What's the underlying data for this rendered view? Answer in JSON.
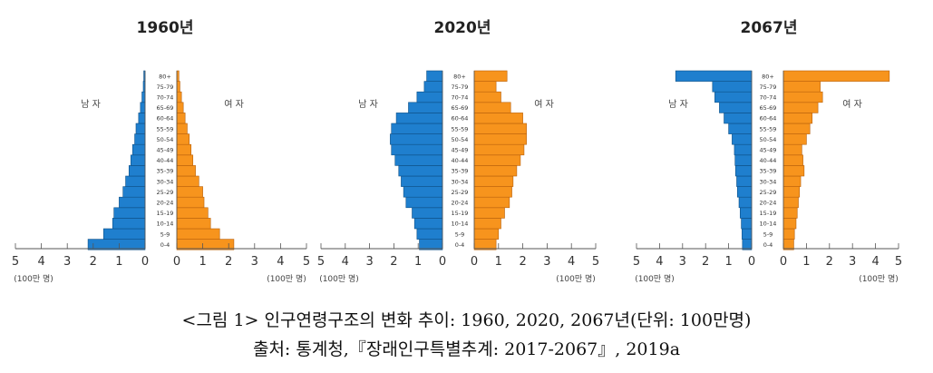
{
  "chart_data": [
    {
      "type": "bar",
      "title": "1960년",
      "age_groups": [
        "0-4",
        "5-9",
        "10-14",
        "15-19",
        "20-24",
        "25-29",
        "30-34",
        "35-39",
        "40-44",
        "45-49",
        "50-54",
        "55-59",
        "60-64",
        "65-69",
        "70-74",
        "75-79",
        "80+"
      ],
      "series": [
        {
          "name": "남 자",
          "values": [
            2.2,
            1.6,
            1.25,
            1.2,
            1.0,
            0.85,
            0.75,
            0.62,
            0.55,
            0.48,
            0.4,
            0.35,
            0.25,
            0.18,
            0.12,
            0.07,
            0.05
          ],
          "color": "#1f7fce"
        },
        {
          "name": "여 자",
          "values": [
            2.2,
            1.65,
            1.3,
            1.2,
            1.05,
            1.0,
            0.85,
            0.72,
            0.62,
            0.55,
            0.48,
            0.4,
            0.32,
            0.25,
            0.18,
            0.12,
            0.08
          ],
          "color": "#f7941d"
        }
      ],
      "xticks": [
        "5",
        "4",
        "3",
        "2",
        "1",
        "0",
        "0",
        "1",
        "2",
        "3",
        "4",
        "5"
      ],
      "unit_label": "(100만 명)",
      "xlim": [
        0,
        5
      ]
    },
    {
      "type": "bar",
      "title": "2020년",
      "age_groups": [
        "0-4",
        "5-9",
        "10-14",
        "15-19",
        "20-24",
        "25-29",
        "30-34",
        "35-39",
        "40-44",
        "45-49",
        "50-54",
        "55-59",
        "60-64",
        "65-69",
        "70-74",
        "75-79",
        "80+"
      ],
      "series": [
        {
          "name": "남 자",
          "values": [
            0.95,
            1.05,
            1.15,
            1.25,
            1.5,
            1.6,
            1.7,
            1.8,
            1.95,
            2.1,
            2.15,
            2.1,
            1.9,
            1.4,
            1.05,
            0.75,
            0.65
          ],
          "color": "#1f7fce"
        },
        {
          "name": "여 자",
          "values": [
            0.9,
            1.0,
            1.1,
            1.25,
            1.45,
            1.55,
            1.6,
            1.75,
            1.9,
            2.05,
            2.15,
            2.15,
            2.0,
            1.5,
            1.1,
            0.9,
            1.35
          ],
          "color": "#f7941d"
        }
      ],
      "xticks": [
        "5",
        "4",
        "3",
        "2",
        "1",
        "0",
        "0",
        "1",
        "2",
        "3",
        "4",
        "5"
      ],
      "unit_label": "(100만 명)",
      "xlim": [
        0,
        5
      ]
    },
    {
      "type": "bar",
      "title": "2067년",
      "age_groups": [
        "0-4",
        "5-9",
        "10-14",
        "15-19",
        "20-24",
        "25-29",
        "30-34",
        "35-39",
        "40-44",
        "45-49",
        "50-54",
        "55-59",
        "60-64",
        "65-69",
        "70-74",
        "75-79",
        "80+"
      ],
      "series": [
        {
          "name": "남 자",
          "values": [
            0.4,
            0.42,
            0.45,
            0.5,
            0.55,
            0.62,
            0.65,
            0.7,
            0.72,
            0.75,
            0.85,
            1.0,
            1.2,
            1.4,
            1.6,
            1.7,
            3.3
          ],
          "color": "#1f7fce"
        },
        {
          "name": "여 자",
          "values": [
            0.45,
            0.48,
            0.55,
            0.6,
            0.65,
            0.7,
            0.75,
            0.9,
            0.85,
            0.8,
            1.0,
            1.15,
            1.25,
            1.5,
            1.7,
            1.6,
            4.6
          ],
          "color": "#f7941d"
        }
      ],
      "xticks": [
        "5",
        "4",
        "3",
        "2",
        "1",
        "0",
        "0",
        "1",
        "2",
        "3",
        "4",
        "5"
      ],
      "unit_label": "(100만 명)",
      "xlim": [
        0,
        5
      ]
    }
  ],
  "caption": {
    "line1": "<그림 1> 인구연령구조의 변화 추이: 1960, 2020, 2067년(단위: 100만명)",
    "line2": "출처: 통계청,『장래인구특별추계: 2017-2067』, 2019a"
  }
}
